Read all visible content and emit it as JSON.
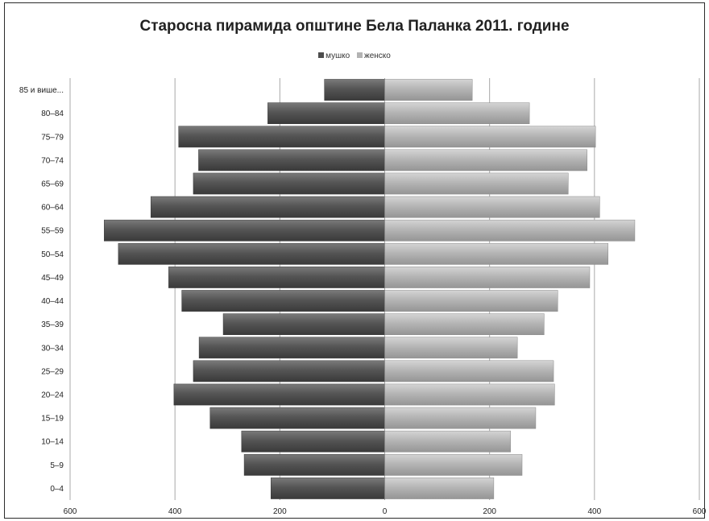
{
  "chart_data": {
    "type": "bar",
    "orientation": "horizontal-pyramid",
    "title": "Старосна пирамида општине Бела Паланка 2011. године",
    "categories": [
      "0–4",
      "5–9",
      "10–14",
      "15–19",
      "20–24",
      "25–29",
      "30–34",
      "35–39",
      "40–44",
      "45–49",
      "50–54",
      "55–59",
      "60–64",
      "65–69",
      "70–74",
      "75–79",
      "80–84",
      "85 и више..."
    ],
    "series": [
      {
        "name": "мушко",
        "color": "#4d4d4d",
        "values": [
          -217,
          -268,
          -273,
          -333,
          -402,
          -365,
          -354,
          -308,
          -387,
          -412,
          -508,
          -535,
          -446,
          -365,
          -355,
          -393,
          -223,
          -115
        ]
      },
      {
        "name": "женско",
        "color": "#b3b3b3",
        "values": [
          208,
          262,
          240,
          288,
          324,
          322,
          253,
          304,
          330,
          391,
          426,
          477,
          410,
          350,
          386,
          402,
          276,
          167
        ]
      }
    ],
    "xlim": [
      -600,
      600
    ],
    "x_ticks": [
      -600,
      -400,
      -200,
      0,
      200,
      400,
      600
    ],
    "x_tick_labels": [
      "600",
      "400",
      "200",
      "0",
      "200",
      "400",
      "600"
    ],
    "grid": "vertical",
    "legend_position": "top"
  }
}
